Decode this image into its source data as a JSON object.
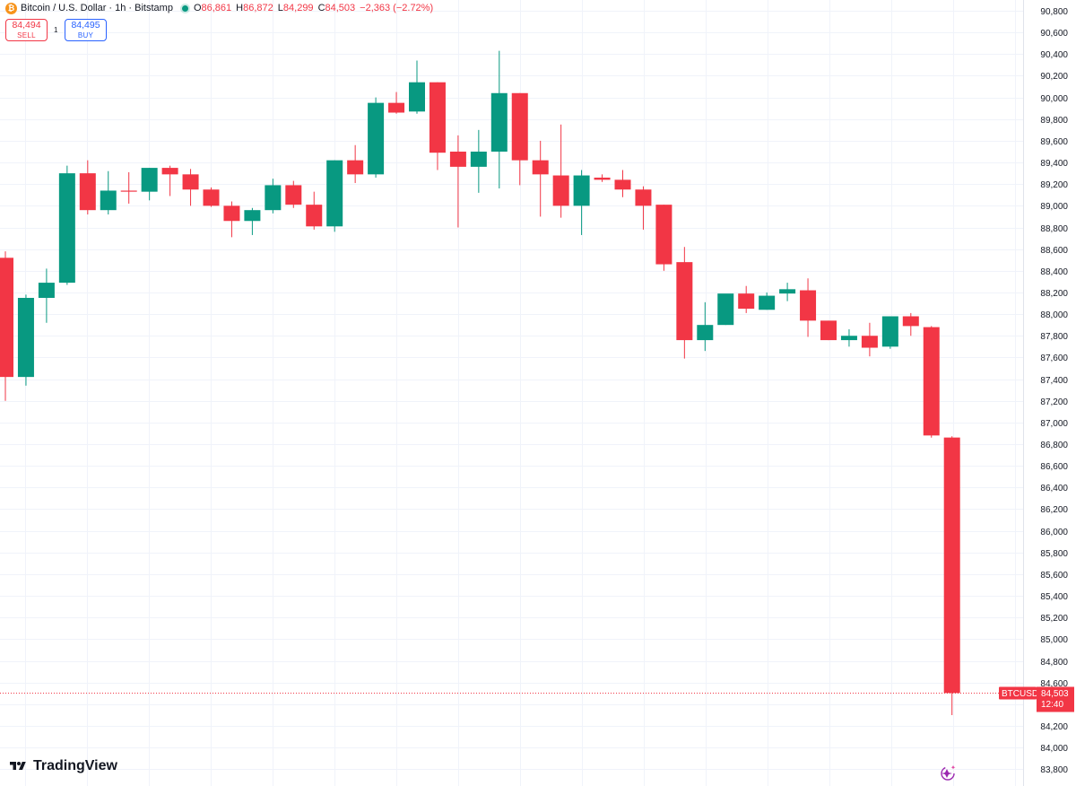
{
  "header": {
    "coin_icon": "bitcoin-icon",
    "symbol_title": "Bitcoin / U.S. Dollar · 1h · Bitstamp",
    "status_icon": "market-open-dot-icon",
    "o_label": "O",
    "o_value": "86,861",
    "h_label": "H",
    "h_value": "86,872",
    "l_label": "L",
    "l_value": "84,299",
    "c_label": "C",
    "c_value": "84,503",
    "change": "−2,363 (−2.72%)"
  },
  "trade": {
    "sell_price": "84,494",
    "sell_label": "SELL",
    "spread": "1",
    "buy_price": "84,495",
    "buy_label": "BUY"
  },
  "branding": {
    "logo_text": "TradingView",
    "logo_icon": "tradingview-logo-icon",
    "assistant_icon": "sparkle-assistant-icon"
  },
  "colors": {
    "up": "#089981",
    "down": "#f23645",
    "grid": "#f0f3fa",
    "axis_text": "#131722"
  },
  "chart_data": {
    "type": "candlestick",
    "symbol": "BTCUSD",
    "interval": "1h",
    "ylim": [
      83700,
      90900
    ],
    "y_ticks": [
      "90,800",
      "90,600",
      "90,400",
      "90,200",
      "90,000",
      "89,800",
      "89,600",
      "89,400",
      "89,200",
      "89,000",
      "88,800",
      "88,600",
      "88,400",
      "88,200",
      "88,000",
      "87,800",
      "87,600",
      "87,400",
      "87,200",
      "87,000",
      "86,800",
      "86,600",
      "86,400",
      "86,200",
      "86,000",
      "85,800",
      "85,600",
      "85,400",
      "85,200",
      "85,000",
      "84,800",
      "84,600",
      "84,400",
      "84,200",
      "84,000",
      "83,800"
    ],
    "last_price_label": {
      "symbol": "BTCUSD",
      "price": "84,503",
      "countdown": "12:40"
    },
    "candles": [
      {
        "o": 88520,
        "h": 88580,
        "l": 87200,
        "c": 87420
      },
      {
        "o": 87420,
        "h": 88180,
        "l": 87340,
        "c": 88150
      },
      {
        "o": 88150,
        "h": 88420,
        "l": 87920,
        "c": 88290
      },
      {
        "o": 88290,
        "h": 89370,
        "l": 88270,
        "c": 89300
      },
      {
        "o": 89300,
        "h": 89420,
        "l": 88920,
        "c": 88960
      },
      {
        "o": 88960,
        "h": 89320,
        "l": 88920,
        "c": 89140
      },
      {
        "o": 89140,
        "h": 89310,
        "l": 89020,
        "c": 89130
      },
      {
        "o": 89130,
        "h": 89350,
        "l": 89050,
        "c": 89350
      },
      {
        "o": 89350,
        "h": 89370,
        "l": 89090,
        "c": 89290
      },
      {
        "o": 89290,
        "h": 89340,
        "l": 89000,
        "c": 89150
      },
      {
        "o": 89150,
        "h": 89170,
        "l": 88990,
        "c": 89000
      },
      {
        "o": 89000,
        "h": 89040,
        "l": 88710,
        "c": 88860
      },
      {
        "o": 88860,
        "h": 88980,
        "l": 88730,
        "c": 88960
      },
      {
        "o": 88960,
        "h": 89250,
        "l": 88930,
        "c": 89190
      },
      {
        "o": 89190,
        "h": 89230,
        "l": 88980,
        "c": 89010
      },
      {
        "o": 89010,
        "h": 89130,
        "l": 88780,
        "c": 88810
      },
      {
        "o": 88810,
        "h": 89420,
        "l": 88760,
        "c": 89420
      },
      {
        "o": 89420,
        "h": 89560,
        "l": 89210,
        "c": 89290
      },
      {
        "o": 89290,
        "h": 90000,
        "l": 89260,
        "c": 89950
      },
      {
        "o": 89950,
        "h": 90050,
        "l": 89850,
        "c": 89860
      },
      {
        "o": 89870,
        "h": 90340,
        "l": 89850,
        "c": 90140
      },
      {
        "o": 90140,
        "h": 90140,
        "l": 89330,
        "c": 89490
      },
      {
        "o": 89500,
        "h": 89650,
        "l": 88800,
        "c": 89360
      },
      {
        "o": 89360,
        "h": 89700,
        "l": 89120,
        "c": 89500
      },
      {
        "o": 89500,
        "h": 90430,
        "l": 89160,
        "c": 90040
      },
      {
        "o": 90040,
        "h": 90040,
        "l": 89190,
        "c": 89420
      },
      {
        "o": 89420,
        "h": 89600,
        "l": 88900,
        "c": 89290
      },
      {
        "o": 89280,
        "h": 89750,
        "l": 88890,
        "c": 89000
      },
      {
        "o": 89000,
        "h": 89330,
        "l": 88730,
        "c": 89280
      },
      {
        "o": 89260,
        "h": 89290,
        "l": 89220,
        "c": 89240
      },
      {
        "o": 89240,
        "h": 89330,
        "l": 89080,
        "c": 89150
      },
      {
        "o": 89150,
        "h": 89180,
        "l": 88780,
        "c": 89000
      },
      {
        "o": 89010,
        "h": 89010,
        "l": 88400,
        "c": 88460
      },
      {
        "o": 88480,
        "h": 88620,
        "l": 87590,
        "c": 87760
      },
      {
        "o": 87760,
        "h": 88110,
        "l": 87660,
        "c": 87900
      },
      {
        "o": 87900,
        "h": 88180,
        "l": 87900,
        "c": 88190
      },
      {
        "o": 88190,
        "h": 88260,
        "l": 88010,
        "c": 88050
      },
      {
        "o": 88040,
        "h": 88200,
        "l": 88040,
        "c": 88170
      },
      {
        "o": 88190,
        "h": 88290,
        "l": 88120,
        "c": 88230
      },
      {
        "o": 88220,
        "h": 88330,
        "l": 87790,
        "c": 87940
      },
      {
        "o": 87940,
        "h": 87940,
        "l": 87760,
        "c": 87760
      },
      {
        "o": 87760,
        "h": 87860,
        "l": 87700,
        "c": 87800
      },
      {
        "o": 87800,
        "h": 87920,
        "l": 87610,
        "c": 87690
      },
      {
        "o": 87700,
        "h": 87980,
        "l": 87680,
        "c": 87980
      },
      {
        "o": 87980,
        "h": 88010,
        "l": 87800,
        "c": 87890
      },
      {
        "o": 87880,
        "h": 87890,
        "l": 86860,
        "c": 86880
      },
      {
        "o": 86861,
        "h": 86872,
        "l": 84299,
        "c": 84503
      }
    ]
  }
}
